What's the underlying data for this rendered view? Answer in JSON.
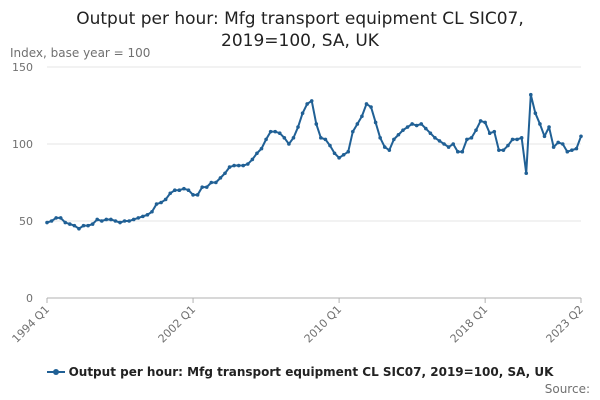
{
  "chart_data": {
    "type": "line",
    "title_lines": [
      "Output per hour: Mfg transport equipment CL SIC07,",
      "2019=100, SA, UK"
    ],
    "ylabel": "Index, base year = 100",
    "ylim": [
      0,
      150
    ],
    "yticks": [
      0,
      50,
      100,
      150
    ],
    "xticks": [
      {
        "label": "1994 Q1",
        "index": 0
      },
      {
        "label": "2002 Q1",
        "index": 32
      },
      {
        "label": "2010 Q1",
        "index": 64
      },
      {
        "label": "2018 Q1",
        "index": 96
      },
      {
        "label": "2023 Q2",
        "index": 117
      }
    ],
    "grid": true,
    "legend_position": "bottom",
    "series": [
      {
        "name": "Output per hour: Mfg transport equipment CL SIC07, 2019=100, SA, UK",
        "color": "#206095",
        "values": [
          49,
          50,
          52,
          52,
          49,
          48,
          47,
          45,
          47,
          47,
          48,
          51,
          50,
          51,
          51,
          50,
          49,
          50,
          50,
          51,
          52,
          53,
          54,
          56,
          61,
          62,
          64,
          68,
          70,
          70,
          71,
          70,
          67,
          67,
          72,
          72,
          75,
          75,
          78,
          81,
          85,
          86,
          86,
          86,
          87,
          90,
          94,
          97,
          103,
          108,
          108,
          107,
          104,
          100,
          104,
          111,
          120,
          126,
          128,
          113,
          104,
          103,
          99,
          94,
          91,
          93,
          95,
          108,
          113,
          118,
          126,
          124,
          114,
          104,
          98,
          96,
          103,
          106,
          109,
          111,
          113,
          112,
          113,
          110,
          107,
          104,
          102,
          100,
          98,
          100,
          95,
          95,
          103,
          104,
          109,
          115,
          114,
          107,
          108,
          96,
          96,
          99,
          103,
          103,
          104,
          81,
          132,
          120,
          113,
          105,
          111,
          98,
          101,
          100,
          95,
          96,
          97,
          105
        ]
      }
    ]
  },
  "source_label": "Source:"
}
